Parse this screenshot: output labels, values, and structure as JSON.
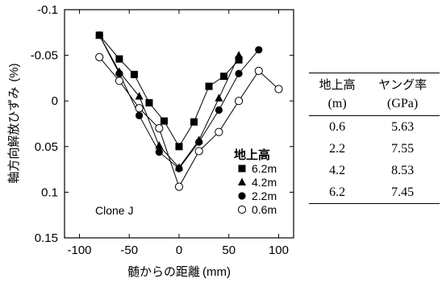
{
  "chart_data": {
    "type": "line",
    "xlabel": "髄からの距離",
    "xlabel_unit": "(mm)",
    "ylabel": "軸方向解放ひずみ",
    "ylabel_unit": "(%)",
    "xlim": [
      -115,
      115
    ],
    "ylim": [
      -0.1,
      0.15
    ],
    "y_reversed": true,
    "x_ticks": [
      -100,
      -50,
      0,
      50,
      100
    ],
    "y_ticks": [
      -0.1,
      -0.05,
      0,
      0.05,
      0.1,
      0.15
    ],
    "y_tick_labels": [
      "-0.1",
      "-0.05",
      "0",
      "0.05",
      "0.1",
      "0.15"
    ],
    "annotation": "Clone J",
    "legend_title": "地上高",
    "legend_position": "bottom-right",
    "series": [
      {
        "name": "6.2m",
        "marker": "square-filled",
        "x": [
          -80,
          -60,
          -45,
          -30,
          -15,
          0,
          15,
          30,
          45,
          60
        ],
        "y": [
          -0.072,
          -0.046,
          -0.029,
          0.002,
          0.022,
          0.05,
          0.023,
          -0.016,
          -0.027,
          -0.045
        ]
      },
      {
        "name": "4.2m",
        "marker": "triangle-filled",
        "x": [
          -80,
          -60,
          -40,
          -20,
          0,
          20,
          40,
          60
        ],
        "y": [
          -0.072,
          -0.032,
          -0.005,
          0.049,
          0.073,
          0.043,
          -0.003,
          -0.05
        ]
      },
      {
        "name": "2.2m",
        "marker": "circle-filled",
        "x": [
          -80,
          -60,
          -40,
          -20,
          0,
          20,
          40,
          60,
          80
        ],
        "y": [
          -0.072,
          -0.03,
          0.016,
          0.056,
          0.074,
          0.045,
          0.01,
          -0.03,
          -0.056
        ]
      },
      {
        "name": "0.6m",
        "marker": "circle-open",
        "x": [
          -80,
          -60,
          -40,
          -20,
          0,
          20,
          40,
          60,
          80,
          100
        ],
        "y": [
          -0.048,
          -0.022,
          0.008,
          0.03,
          0.094,
          0.055,
          0.034,
          0,
          -0.033,
          -0.013
        ]
      }
    ]
  },
  "table": {
    "header": {
      "col1_line1": "地上高",
      "col1_line2": "(m)",
      "col2_line1": "ヤング率",
      "col2_line2": "(GPa)"
    },
    "rows": [
      {
        "height": "0.6",
        "modulus": "5.63"
      },
      {
        "height": "2.2",
        "modulus": "7.55"
      },
      {
        "height": "4.2",
        "modulus": "8.53"
      },
      {
        "height": "6.2",
        "modulus": "7.45"
      }
    ]
  }
}
